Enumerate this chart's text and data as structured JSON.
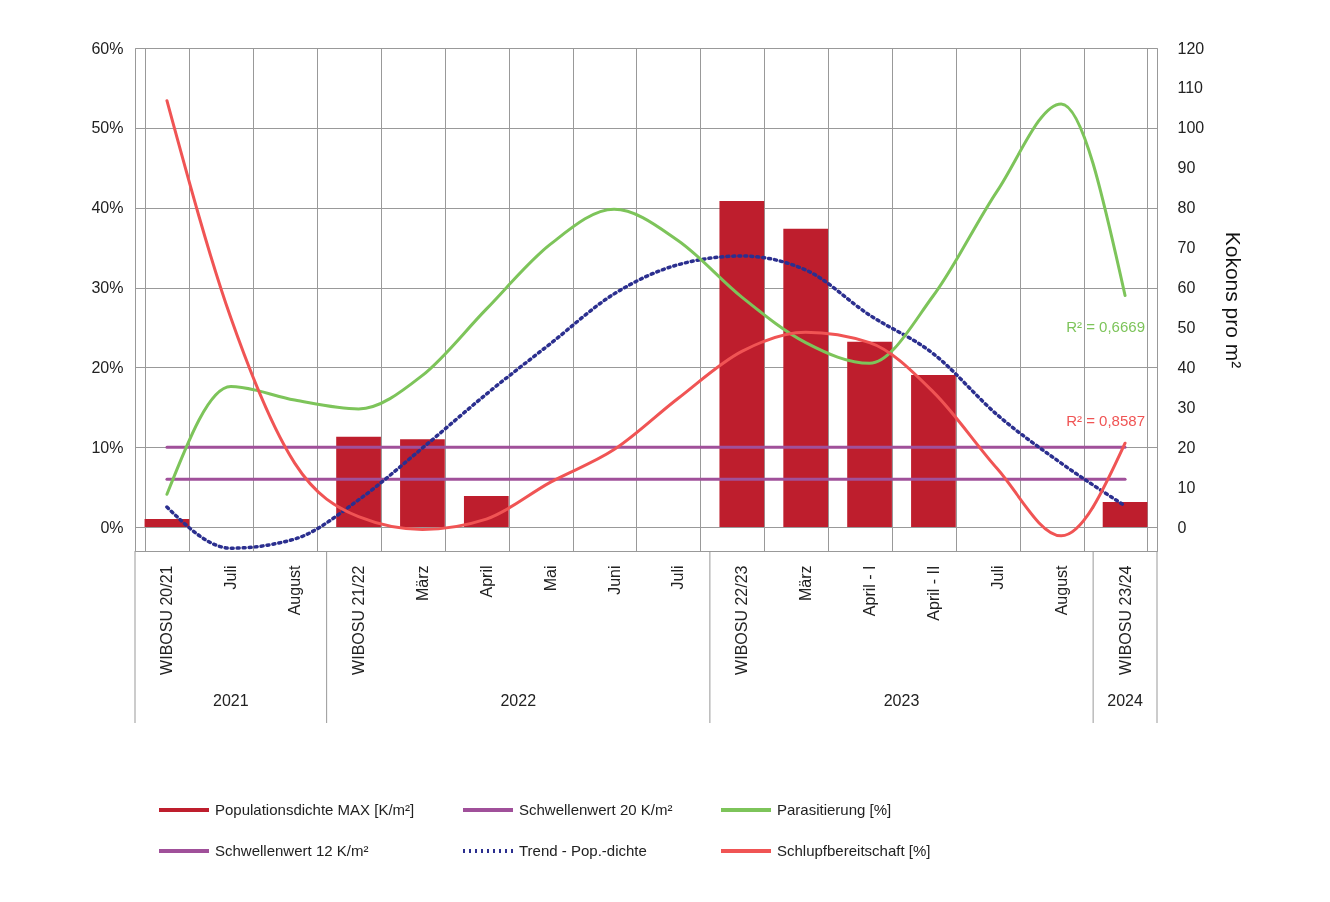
{
  "chart_data": {
    "type": "bar",
    "categories": [
      "WIBOSU 20/21",
      "Juli",
      "August",
      "WIBOSU 21/22",
      "März",
      "April",
      "Mai",
      "Juni",
      "Juli",
      "WIBOSU 22/23",
      "März",
      "April  -  I",
      "April  -  II",
      "Juli",
      "August",
      "WIBOSU 23/24"
    ],
    "series": [
      {
        "name": "Populationsdichte MAX [K/m²]",
        "axis": "y2",
        "color": "#be1e2d",
        "values": [
          2,
          null,
          null,
          22.6,
          22,
          7.8,
          null,
          null,
          null,
          81.7,
          74.7,
          46.4,
          38.1,
          null,
          null,
          6.3
        ]
      },
      {
        "name": "Schwellenwert 12 K/m²",
        "type": "line",
        "axis": "y2",
        "color": "#a0509a",
        "line_style": "solid",
        "values": [
          12,
          12,
          12,
          12,
          12,
          12,
          12,
          12,
          12,
          12,
          12,
          12,
          12,
          12,
          12,
          12
        ]
      },
      {
        "name": "Schwellenwert 20 K/m²",
        "type": "line",
        "axis": "y2",
        "color": "#a0509a",
        "line_style": "solid",
        "values": [
          20,
          20,
          20,
          20,
          20,
          20,
          20,
          20,
          20,
          20,
          20,
          20,
          20,
          20,
          20,
          20
        ]
      },
      {
        "name": "Trend - Pop.-dichte",
        "type": "line",
        "axis": "y2",
        "color": "#2b2f8f",
        "line_style": "dotted",
        "values": [
          5,
          -5.3,
          -3,
          6.8,
          19.8,
          33.3,
          45.9,
          58.4,
          65.7,
          67.9,
          64.4,
          53.1,
          43.4,
          28.1,
          16,
          5.3
        ]
      },
      {
        "name": "Parasitierung [%]",
        "type": "line",
        "color": "#7dc45a",
        "line_style": "solid",
        "values": [
          4.1,
          17.6,
          15.9,
          14.8,
          19,
          27.3,
          35.4,
          39.8,
          35.9,
          28.8,
          23.1,
          20.5,
          29,
          42.1,
          53,
          29
        ]
      },
      {
        "name": "Schlupfbereitschaft [%]",
        "type": "line",
        "color": "#f05454",
        "line_style": "solid",
        "values": [
          53.4,
          26.2,
          8,
          1.3,
          -0.3,
          1,
          5.6,
          9.7,
          16.1,
          22,
          24.4,
          23.1,
          16.9,
          7.3,
          -1.1,
          10.5
        ]
      }
    ],
    "ylim": [
      -3,
      60
    ],
    "yticks": [
      {
        "value": 0,
        "label": "0%"
      },
      {
        "value": 10,
        "label": "10%"
      },
      {
        "value": 20,
        "label": "20%"
      },
      {
        "value": 30,
        "label": "30%"
      },
      {
        "value": 40,
        "label": "40%"
      },
      {
        "value": 50,
        "label": "50%"
      },
      {
        "value": 60,
        "label": "60%"
      }
    ],
    "y2lim": [
      -6,
      120
    ],
    "y2ticks": [
      0,
      10,
      20,
      30,
      40,
      50,
      60,
      70,
      80,
      90,
      100,
      110,
      120
    ],
    "y2label": "Kokons pro m²",
    "annotations": [
      "R² = 0,6669",
      "R² = 0,8587",
      "2021",
      "2022",
      "2023",
      "2024"
    ],
    "grid": true,
    "legend": "bottom"
  }
}
